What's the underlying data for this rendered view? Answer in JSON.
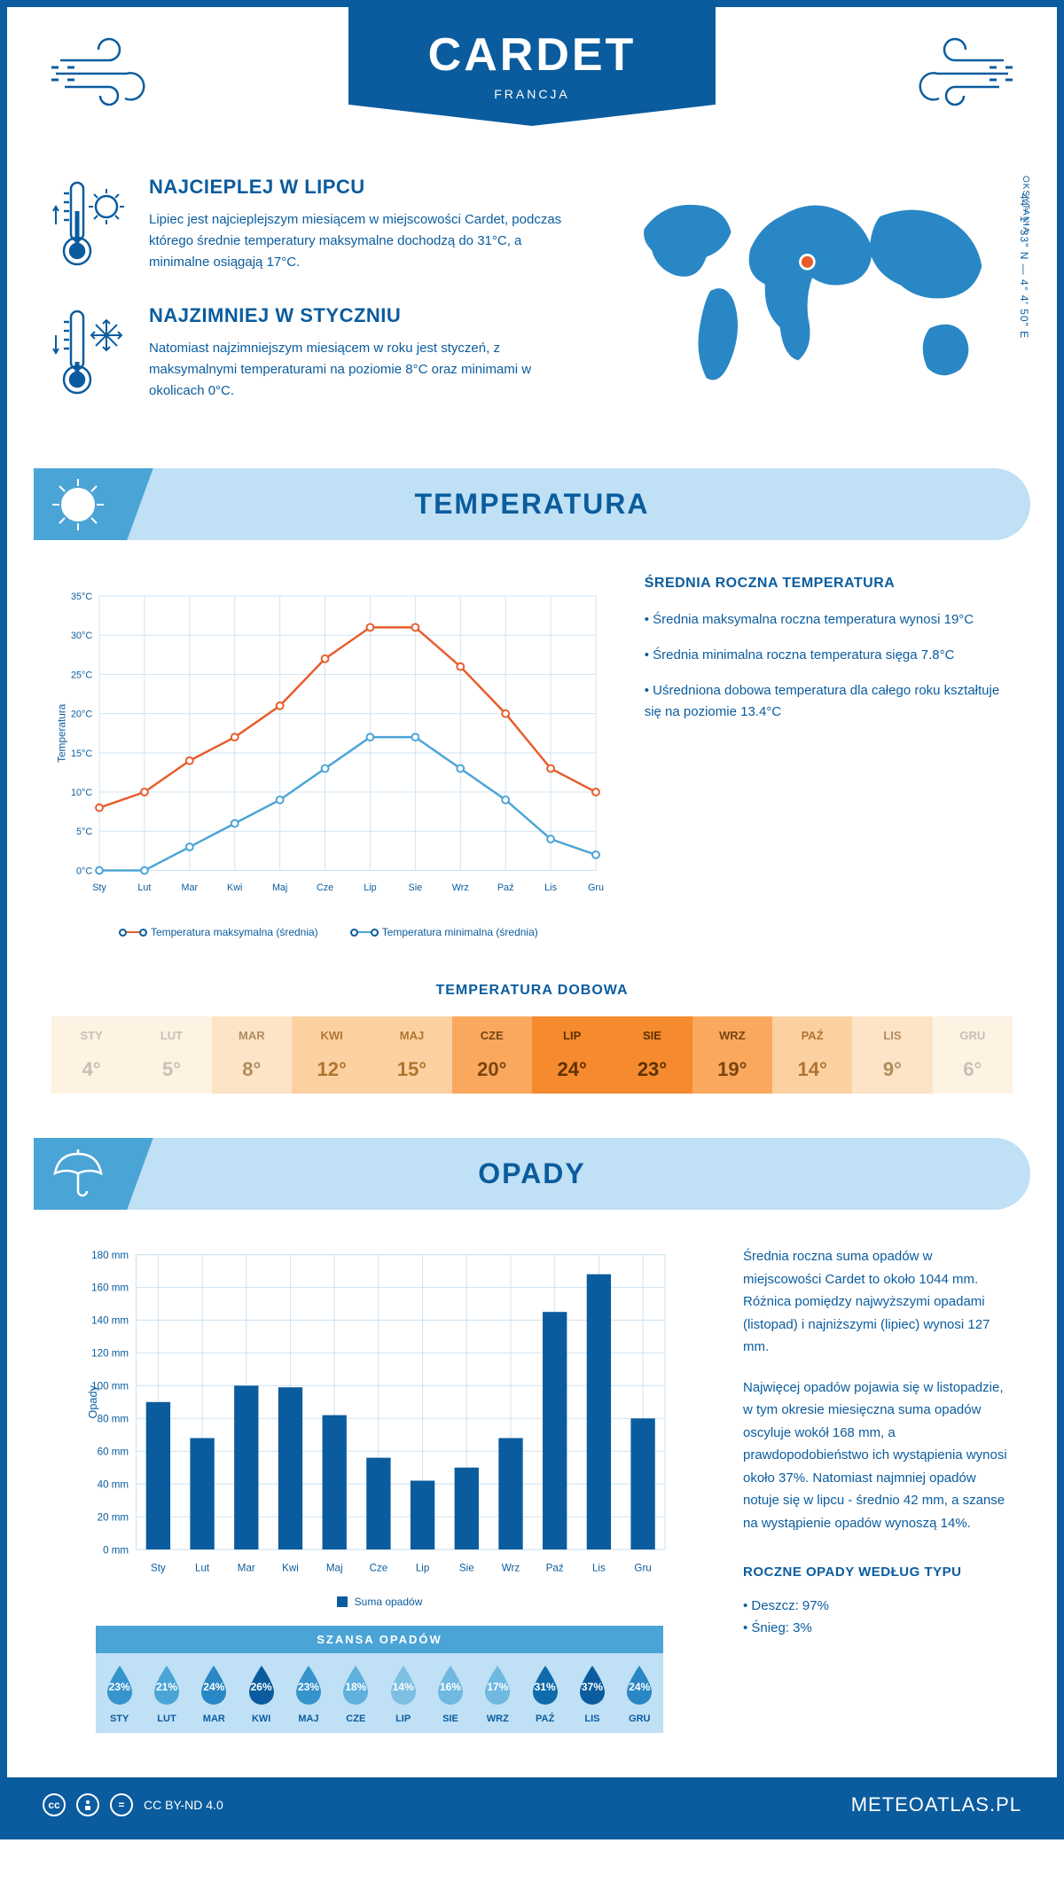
{
  "header": {
    "title": "CARDET",
    "subtitle": "FRANCJA"
  },
  "coords": "44° 1' 33\" N — 4° 4' 50\" E",
  "region": "OKSYTANIA",
  "intro": {
    "hot": {
      "title": "NAJCIEPLEJ W LIPCU",
      "text": "Lipiec jest najcieplejszym miesiącem w miejscowości Cardet, podczas którego średnie temperatury maksymalne dochodzą do 31°C, a minimalne osiągają 17°C."
    },
    "cold": {
      "title": "NAJZIMNIEJ W STYCZNIU",
      "text": "Natomiast najzimniejszym miesiącem w roku jest styczeń, z maksymalnymi temperaturami na poziomie 8°C oraz minimami w okolicach 0°C."
    }
  },
  "sections": {
    "temperature": "TEMPERATURA",
    "precipitation": "OPADY"
  },
  "temp_chart": {
    "type": "line",
    "ylabel": "Temperatura",
    "months": [
      "Sty",
      "Lut",
      "Mar",
      "Kwi",
      "Maj",
      "Cze",
      "Lip",
      "Sie",
      "Wrz",
      "Paź",
      "Lis",
      "Gru"
    ],
    "yticks": [
      "0°C",
      "5°C",
      "10°C",
      "15°C",
      "20°C",
      "25°C",
      "30°C",
      "35°C"
    ],
    "ymin": 0,
    "ymax": 35,
    "series_max": {
      "label": "Temperatura maksymalna (średnia)",
      "color": "#e85c2b",
      "values": [
        8,
        10,
        14,
        17,
        21,
        27,
        31,
        31,
        26,
        20,
        13,
        10
      ]
    },
    "series_min": {
      "label": "Temperatura minimalna (średnia)",
      "color": "#4ba4d6",
      "values": [
        0,
        0,
        3,
        6,
        9,
        13,
        17,
        17,
        13,
        9,
        4,
        2
      ]
    },
    "grid_color": "#d0e4f2",
    "background": "#ffffff"
  },
  "temp_side": {
    "heading": "ŚREDNIA ROCZNA TEMPERATURA",
    "bullets": [
      "• Średnia maksymalna roczna temperatura wynosi 19°C",
      "• Średnia minimalna roczna temperatura sięga 7.8°C",
      "• Uśredniona dobowa temperatura dla całego roku kształtuje się na poziomie 13.4°C"
    ]
  },
  "daily": {
    "heading": "TEMPERATURA DOBOWA",
    "months": [
      "STY",
      "LUT",
      "MAR",
      "KWI",
      "MAJ",
      "CZE",
      "LIP",
      "SIE",
      "WRZ",
      "PAŹ",
      "LIS",
      "GRU"
    ],
    "values": [
      "4°",
      "5°",
      "8°",
      "12°",
      "15°",
      "20°",
      "24°",
      "23°",
      "19°",
      "14°",
      "9°",
      "6°"
    ],
    "bg_colors": [
      "#fef2e3",
      "#fef2e3",
      "#fde4c7",
      "#fcd1a2",
      "#fcd1a2",
      "#f9a85e",
      "#f58a2e",
      "#f58a2e",
      "#f9a85e",
      "#fcd1a2",
      "#fde4c7",
      "#fef2e3"
    ],
    "text_colors": [
      "#c9c0b4",
      "#c9c0b4",
      "#b08c5e",
      "#b0742e",
      "#b0742e",
      "#7a4510",
      "#5e3100",
      "#5e3100",
      "#7a4510",
      "#b0742e",
      "#b08c5e",
      "#c9c0b4"
    ]
  },
  "precip_chart": {
    "type": "bar",
    "ylabel": "Opady",
    "months": [
      "Sty",
      "Lut",
      "Mar",
      "Kwi",
      "Maj",
      "Cze",
      "Lip",
      "Sie",
      "Wrz",
      "Paź",
      "Lis",
      "Gru"
    ],
    "yticks": [
      "0 mm",
      "20 mm",
      "40 mm",
      "60 mm",
      "80 mm",
      "100 mm",
      "120 mm",
      "140 mm",
      "160 mm",
      "180 mm"
    ],
    "ymin": 0,
    "ymax": 180,
    "values": [
      90,
      68,
      100,
      99,
      82,
      56,
      42,
      50,
      68,
      145,
      168,
      80
    ],
    "bar_color": "#0a5c9e",
    "grid_color": "#d0e4f2",
    "legend": "Suma opadów"
  },
  "precip_side": {
    "p1": "Średnia roczna suma opadów w miejscowości Cardet to około 1044 mm. Różnica pomiędzy najwyższymi opadami (listopad) i najniższymi (lipiec) wynosi 127 mm.",
    "p2": "Najwięcej opadów pojawia się w listopadzie, w tym okresie miesięczna suma opadów oscyluje wokół 168 mm, a prawdopodobieństwo ich wystąpienia wynosi około 37%. Natomiast najmniej opadów notuje się w lipcu - średnio 42 mm, a szanse na wystąpienie opadów wynoszą 14%.",
    "by_type_h": "ROCZNE OPADY WEDŁUG TYPU",
    "by_type": [
      "• Deszcz: 97%",
      "• Śnieg: 3%"
    ]
  },
  "chance": {
    "heading": "SZANSA OPADÓW",
    "months": [
      "STY",
      "LUT",
      "MAR",
      "KWI",
      "MAJ",
      "CZE",
      "LIP",
      "SIE",
      "WRZ",
      "PAŹ",
      "LIS",
      "GRU"
    ],
    "values": [
      "23%",
      "21%",
      "24%",
      "26%",
      "23%",
      "18%",
      "14%",
      "16%",
      "17%",
      "31%",
      "37%",
      "24%"
    ],
    "drop_colors": [
      "#3694cd",
      "#4ba4d6",
      "#2a87c5",
      "#0a5c9e",
      "#3694cd",
      "#5fb0dc",
      "#7cbfe3",
      "#6fb8df",
      "#6fb8df",
      "#0f6bab",
      "#0a5c9e",
      "#2a87c5"
    ]
  },
  "footer": {
    "license": "CC BY-ND 4.0",
    "brand": "METEOATLAS.PL"
  },
  "colors": {
    "primary": "#0a5c9e",
    "light": "#bfe0f5",
    "mid": "#4ba4d6",
    "orange": "#e85c2b"
  }
}
